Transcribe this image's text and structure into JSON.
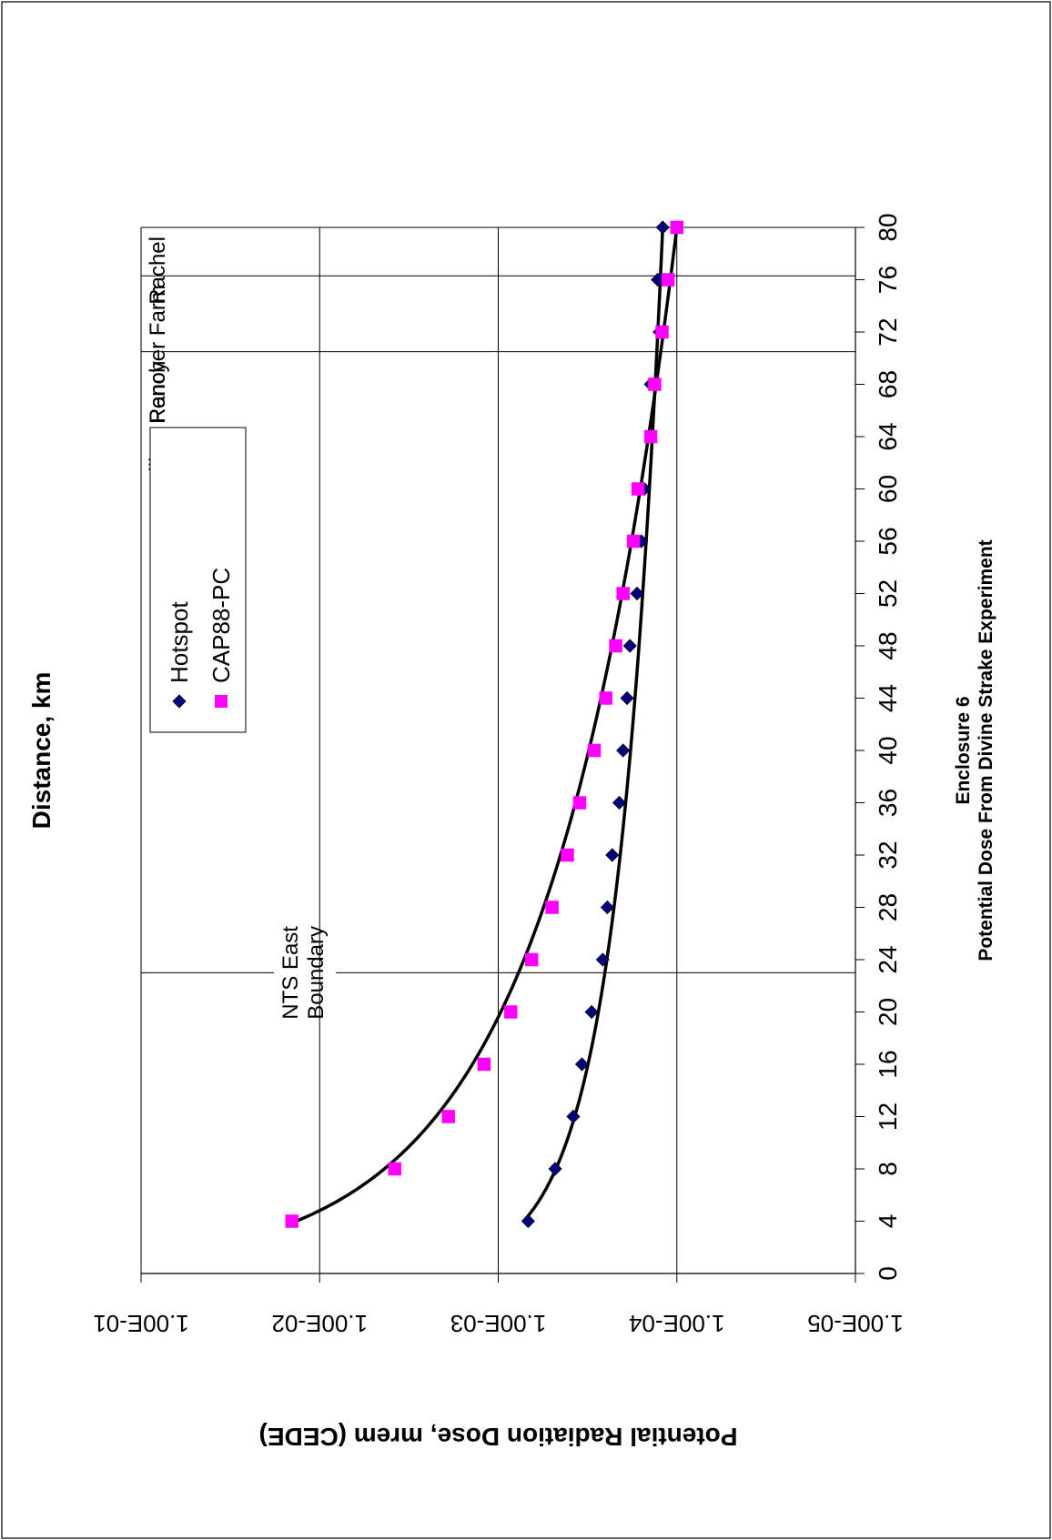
{
  "chart_data": {
    "type": "scatter",
    "title": "Enclosure 6",
    "subtitle": "Potential Dose From Divine Strake Experiment",
    "xlabel": "Distance, km",
    "ylabel": "Potential Radiation Dose, mrem (CEDE)",
    "x_ticks": [
      "0",
      "4",
      "8",
      "12",
      "16",
      "20",
      "24",
      "28",
      "32",
      "36",
      "40",
      "44",
      "48",
      "52",
      "56",
      "60",
      "64",
      "68",
      "72",
      "76",
      "80"
    ],
    "xlim": [
      0,
      80
    ],
    "ylim": [
      1e-05,
      0.1
    ],
    "y_scale": "log",
    "y_ticks": [
      "1.00E-01",
      "1.00E-02",
      "1.00E-03",
      "1.00E-04",
      "1.00E-05"
    ],
    "y_tick_values": [
      0.1,
      0.01,
      0.001,
      0.0001,
      1e-05
    ],
    "legend": {
      "placement": "top-right",
      "entries": [
        {
          "label": "Hotspot",
          "marker": "diamond",
          "color": "#000080"
        },
        {
          "label": "CAP88-PC",
          "marker": "square",
          "color": "#ff00ff"
        }
      ]
    },
    "series": [
      {
        "name": "Hotspot",
        "marker": "diamond",
        "color": "#000080",
        "x": [
          4,
          8,
          12,
          16,
          20,
          24,
          28,
          32,
          36,
          40,
          44,
          48,
          52,
          56,
          60,
          68,
          72,
          76,
          80
        ],
        "y": [
          0.00068,
          0.00048,
          0.00038,
          0.00034,
          0.0003,
          0.00026,
          0.000245,
          0.00023,
          0.00021,
          0.0002,
          0.00019,
          0.000183,
          0.000167,
          0.000158,
          0.000152,
          0.00014,
          0.000125,
          0.000128,
          0.00012
        ]
      },
      {
        "name": "CAP88-PC",
        "marker": "square",
        "color": "#ff00ff",
        "x": [
          4,
          8,
          12,
          16,
          20,
          24,
          28,
          32,
          36,
          40,
          44,
          48,
          52,
          56,
          60,
          64,
          68,
          72,
          76,
          80
        ],
        "y": [
          0.0143,
          0.0038,
          0.0019,
          0.0012,
          0.00085,
          0.00065,
          0.0005,
          0.00041,
          0.00035,
          0.00029,
          0.00025,
          0.00022,
          0.0002,
          0.000175,
          0.000165,
          0.00014,
          0.000133,
          0.000121,
          0.000112,
          0.0001
        ]
      }
    ],
    "trendlines": [
      {
        "series": "Hotspot",
        "y_at_x4": 0.00072,
        "y_at_x80": 0.00012
      },
      {
        "series": "CAP88-PC",
        "y_at_x4": 0.0135,
        "y_at_x80": 0.0001
      }
    ],
    "annotations": [
      {
        "label_lines": [
          "NTS East",
          "Boundary"
        ],
        "x": 23
      },
      {
        "label_lines": [
          "Medlin's Ranch"
        ],
        "x": 70.5
      },
      {
        "label_lines": [
          "Penoyer Farm"
        ],
        "x": 76.3
      },
      {
        "label_lines": [
          "Rachel"
        ],
        "x": 80
      }
    ],
    "grid": {
      "y_major": true,
      "x_major": false
    },
    "orientation": "rotated-90-clockwise"
  }
}
